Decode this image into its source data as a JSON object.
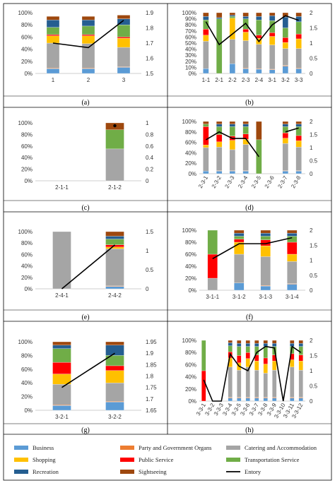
{
  "legend": [
    {
      "key": "business",
      "label": "Business",
      "color": "#5B9BD5",
      "type": "patch"
    },
    {
      "key": "party",
      "label": "Party and Government Organs",
      "color": "#ED7D31",
      "type": "patch"
    },
    {
      "key": "catering",
      "label": "Catering and Accommodation",
      "color": "#A5A5A5",
      "type": "patch"
    },
    {
      "key": "shopping",
      "label": "Shopping",
      "color": "#FFC000",
      "type": "patch"
    },
    {
      "key": "public",
      "label": "Public Service",
      "color": "#FF0000",
      "type": "patch"
    },
    {
      "key": "transport",
      "label": "Transportation Service",
      "color": "#70AD47",
      "type": "patch"
    },
    {
      "key": "recreation",
      "label": "Recreation",
      "color": "#255E91",
      "type": "patch"
    },
    {
      "key": "sightseeing",
      "label": "Sightseeing",
      "color": "#9E480E",
      "type": "patch"
    },
    {
      "key": "entropy",
      "label": "Entory",
      "color": "#000000",
      "type": "line"
    }
  ],
  "chart_data": [
    {
      "panel": "(a)",
      "type": "bar",
      "categories": [
        "1",
        "2",
        "3"
      ],
      "ylim_left": [
        0,
        100
      ],
      "yticks_left": [
        "0%",
        "20%",
        "40%",
        "60%",
        "80%",
        "100%"
      ],
      "ylim_right": [
        1.5,
        1.9
      ],
      "yticks_right": [
        "1.5",
        "1.6",
        "1.7",
        "1.8",
        "1.9"
      ],
      "stacks": [
        {
          "business": 8,
          "party": 1,
          "catering": 41,
          "shopping": 12,
          "public": 2,
          "transport": 12,
          "recreation": 12,
          "sightseeing": 6,
          "recreation_top": 6
        },
        {
          "business": 8,
          "party": 1,
          "catering": 40,
          "shopping": 13,
          "public": 2,
          "transport": 14,
          "recreation": 10,
          "sightseeing": 6,
          "recreation_top": 6
        },
        {
          "business": 10,
          "party": 1,
          "catering": 32,
          "shopping": 15,
          "public": 2,
          "transport": 20,
          "recreation": 10,
          "sightseeing": 6,
          "recreation_top": 4
        }
      ],
      "line": [
        1.7,
        1.67,
        1.85
      ]
    },
    {
      "panel": "(b)",
      "type": "bar",
      "categories": [
        "1-1",
        "2-1",
        "2-2",
        "2-3",
        "2-4",
        "3-1",
        "3-2",
        "3-3"
      ],
      "ylim_left": [
        0,
        100
      ],
      "yticks_left": [
        "0%",
        "10%",
        "20%",
        "30%",
        "40%",
        "50%",
        "60%",
        "70%",
        "80%",
        "90%",
        "100%"
      ],
      "ylim_right": [
        0,
        2
      ],
      "yticks_right": [
        "0",
        "0.5",
        "1",
        "1.5",
        "2"
      ],
      "stacks": [
        {
          "business": 8,
          "party": 0,
          "catering": 45,
          "shopping": 10,
          "public": 10,
          "transport": 15,
          "recreation": 6,
          "sightseeing": 6
        },
        {
          "business": 0,
          "party": 0,
          "catering": 0,
          "shopping": 0,
          "public": 0,
          "transport": 90,
          "recreation": 2,
          "sightseeing": 8
        },
        {
          "business": 16,
          "party": 0,
          "catering": 40,
          "shopping": 35,
          "public": 0,
          "transport": 3,
          "recreation": 2,
          "sightseeing": 4
        },
        {
          "business": 8,
          "party": 1,
          "catering": 45,
          "shopping": 14,
          "public": 5,
          "transport": 17,
          "recreation": 4,
          "sightseeing": 6
        },
        {
          "business": 7,
          "party": 1,
          "catering": 40,
          "shopping": 10,
          "public": 5,
          "transport": 25,
          "recreation": 6,
          "sightseeing": 6
        },
        {
          "business": 6,
          "party": 1,
          "catering": 40,
          "shopping": 14,
          "public": 6,
          "transport": 20,
          "recreation": 8,
          "sightseeing": 5
        },
        {
          "business": 12,
          "party": 1,
          "catering": 28,
          "shopping": 10,
          "public": 8,
          "transport": 16,
          "recreation": 18,
          "sightseeing": 7
        },
        {
          "business": 8,
          "party": 1,
          "catering": 32,
          "shopping": 16,
          "public": 8,
          "transport": 20,
          "recreation": 9,
          "sightseeing": 6
        }
      ],
      "line": [
        1.7,
        0.95,
        1.3,
        1.65,
        1.05,
        1.6,
        1.9,
        1.75
      ]
    },
    {
      "panel": "(c)",
      "type": "bar",
      "categories": [
        "2-1-1",
        "2-1-2"
      ],
      "ylim_left": [
        0,
        100
      ],
      "yticks_left": [
        "0%",
        "20%",
        "40%",
        "60%",
        "80%",
        "100%"
      ],
      "ylim_right": [
        0,
        1
      ],
      "yticks_right": [
        "0",
        "0.2",
        "0.4",
        "0.6",
        "0.8",
        "1"
      ],
      "stacks": [
        {
          "business": 0,
          "party": 0,
          "catering": 0,
          "shopping": 0,
          "public": 0,
          "transport": 0,
          "recreation": 0,
          "sightseeing": 0
        },
        {
          "business": 0,
          "party": 0,
          "catering": 55,
          "shopping": 0,
          "public": 0,
          "transport": 33,
          "recreation": 0,
          "sightseeing": 12
        }
      ],
      "line": [
        null,
        0.95
      ]
    },
    {
      "panel": "(d)",
      "type": "bar",
      "categories": [
        "2-3-1",
        "2-3-2",
        "2-3-3",
        "2-3-4",
        "2-3-5",
        "2-3-6",
        "2-3-7",
        "2-3-8"
      ],
      "ylim_left": [
        0,
        100
      ],
      "yticks_left": [
        "0%",
        "20%",
        "40%",
        "60%",
        "80%",
        "100%"
      ],
      "ylim_right": [
        0,
        2
      ],
      "yticks_right": [
        "0",
        "0.5",
        "1",
        "1.5",
        "2"
      ],
      "stacks": [
        {
          "business": 5,
          "party": 0,
          "catering": 45,
          "shopping": 5,
          "public": 35,
          "transport": 5,
          "recreation": 0,
          "sightseeing": 5
        },
        {
          "business": 5,
          "party": 1,
          "catering": 45,
          "shopping": 10,
          "public": 14,
          "transport": 15,
          "recreation": 5,
          "sightseeing": 5
        },
        {
          "business": 5,
          "party": 1,
          "catering": 40,
          "shopping": 18,
          "public": 8,
          "transport": 18,
          "recreation": 5,
          "sightseeing": 5
        },
        {
          "business": 5,
          "party": 1,
          "catering": 50,
          "shopping": 10,
          "public": 10,
          "transport": 14,
          "recreation": 5,
          "sightseeing": 5
        },
        {
          "business": 0,
          "party": 0,
          "catering": 0,
          "shopping": 0,
          "public": 0,
          "transport": 65,
          "recreation": 0,
          "sightseeing": 35
        },
        {
          "business": 0,
          "party": 0,
          "catering": 0,
          "shopping": 0,
          "public": 0,
          "transport": 0,
          "recreation": 0,
          "sightseeing": 0
        },
        {
          "business": 5,
          "party": 1,
          "catering": 52,
          "shopping": 10,
          "public": 10,
          "transport": 12,
          "recreation": 5,
          "sightseeing": 5
        },
        {
          "business": 5,
          "party": 1,
          "catering": 45,
          "shopping": 12,
          "public": 10,
          "transport": 17,
          "recreation": 5,
          "sightseeing": 5
        }
      ],
      "line": [
        1.3,
        1.6,
        1.35,
        1.35,
        0.65,
        null,
        1.6,
        1.75
      ]
    },
    {
      "panel": "(e)",
      "type": "bar",
      "categories": [
        "2-4-1",
        "2-4-2"
      ],
      "ylim_left": [
        0,
        100
      ],
      "yticks_left": [
        "0%",
        "20%",
        "40%",
        "60%",
        "80%",
        "100%"
      ],
      "ylim_right": [
        0,
        1.5
      ],
      "yticks_right": [
        "0",
        "0.5",
        "1",
        "1.5"
      ],
      "stacks": [
        {
          "business": 0,
          "party": 0,
          "catering": 100,
          "shopping": 0,
          "public": 0,
          "transport": 0,
          "recreation": 0,
          "sightseeing": 0
        },
        {
          "business": 4,
          "party": 1,
          "catering": 65,
          "shopping": 3,
          "public": 4,
          "transport": 10,
          "recreation": 5,
          "sightseeing": 8
        }
      ],
      "line": [
        0.0,
        1.15
      ]
    },
    {
      "panel": "(f)",
      "type": "bar",
      "categories": [
        "3-1-1",
        "3-1-2",
        "3-1-3",
        "3-1-4"
      ],
      "ylim_left": [
        0,
        100
      ],
      "yticks_left": [
        "0%",
        "20%",
        "40%",
        "60%",
        "80%",
        "100%"
      ],
      "ylim_right": [
        0,
        2
      ],
      "yticks_right": [
        "0",
        "0.5",
        "1",
        "1.5",
        "2"
      ],
      "stacks": [
        {
          "business": 0,
          "party": 0,
          "catering": 20,
          "shopping": 0,
          "public": 40,
          "transport": 40,
          "recreation": 0,
          "sightseeing": 0
        },
        {
          "business": 12,
          "party": 0,
          "catering": 48,
          "shopping": 20,
          "public": 5,
          "transport": 5,
          "recreation": 5,
          "sightseeing": 5
        },
        {
          "business": 7,
          "party": 1,
          "catering": 48,
          "shopping": 18,
          "public": 10,
          "transport": 6,
          "recreation": 5,
          "sightseeing": 5
        },
        {
          "business": 10,
          "party": 1,
          "catering": 37,
          "shopping": 12,
          "public": 20,
          "transport": 10,
          "recreation": 5,
          "sightseeing": 5
        }
      ],
      "line": [
        1.05,
        1.55,
        1.55,
        1.75
      ]
    },
    {
      "panel": "(g)",
      "type": "bar",
      "categories": [
        "3-2-1",
        "3-2-2"
      ],
      "ylim_left": [
        0,
        100
      ],
      "yticks_left": [
        "0%",
        "20%",
        "40%",
        "60%",
        "80%",
        "100%"
      ],
      "ylim_right": [
        1.65,
        1.95
      ],
      "yticks_right": [
        "1.65",
        "1.7",
        "1.75",
        "1.8",
        "1.85",
        "1.9",
        "1.95"
      ],
      "stacks": [
        {
          "business": 7,
          "party": 1,
          "catering": 30,
          "shopping": 15,
          "public": 17,
          "transport": 20,
          "recreation": 5,
          "sightseeing": 5
        },
        {
          "business": 12,
          "party": 1,
          "catering": 27,
          "shopping": 18,
          "public": 7,
          "transport": 15,
          "recreation": 15,
          "sightseeing": 5
        }
      ],
      "line": [
        1.75,
        1.9
      ]
    },
    {
      "panel": "(h)",
      "type": "bar",
      "categories": [
        "3-3-1",
        "3-3-2",
        "3-3-3",
        "3-3-4",
        "3-3-5",
        "3-3-6",
        "3-3-7",
        "3-3-8",
        "3-3-9",
        "3-3-10",
        "3-3-11",
        "3-3-12"
      ],
      "ylim_left": [
        0,
        100
      ],
      "yticks_left": [
        "0%",
        "20%",
        "40%",
        "60%",
        "80%",
        "100%"
      ],
      "ylim_right": [
        0,
        2
      ],
      "yticks_right": [
        "0",
        "0.5",
        "1",
        "1.5",
        "2"
      ],
      "stacks": [
        {
          "business": 0,
          "party": 0,
          "catering": 0,
          "shopping": 0,
          "public": 50,
          "transport": 50,
          "recreation": 0,
          "sightseeing": 0
        },
        {
          "business": 0,
          "party": 0,
          "catering": 0,
          "shopping": 0,
          "public": 0,
          "transport": 0,
          "recreation": 0,
          "sightseeing": 0
        },
        {
          "business": 0,
          "party": 0,
          "catering": 0,
          "shopping": 0,
          "public": 0,
          "transport": 0,
          "recreation": 0,
          "sightseeing": 0
        },
        {
          "business": 5,
          "party": 1,
          "catering": 50,
          "shopping": 15,
          "public": 10,
          "transport": 10,
          "recreation": 5,
          "sightseeing": 4
        },
        {
          "business": 5,
          "party": 1,
          "catering": 45,
          "shopping": 12,
          "public": 12,
          "transport": 15,
          "recreation": 5,
          "sightseeing": 5
        },
        {
          "business": 5,
          "party": 1,
          "catering": 50,
          "shopping": 14,
          "public": 10,
          "transport": 10,
          "recreation": 5,
          "sightseeing": 5
        },
        {
          "business": 5,
          "party": 1,
          "catering": 45,
          "shopping": 15,
          "public": 10,
          "transport": 14,
          "recreation": 5,
          "sightseeing": 5
        },
        {
          "business": 5,
          "party": 1,
          "catering": 40,
          "shopping": 15,
          "public": 10,
          "transport": 19,
          "recreation": 5,
          "sightseeing": 5
        },
        {
          "business": 5,
          "party": 1,
          "catering": 45,
          "shopping": 15,
          "public": 10,
          "transport": 14,
          "recreation": 5,
          "sightseeing": 5
        },
        {
          "business": 0,
          "party": 0,
          "catering": 0,
          "shopping": 0,
          "public": 0,
          "transport": 0,
          "recreation": 0,
          "sightseeing": 0
        },
        {
          "business": 5,
          "party": 1,
          "catering": 50,
          "shopping": 12,
          "public": 10,
          "transport": 12,
          "recreation": 5,
          "sightseeing": 5
        },
        {
          "business": 5,
          "party": 1,
          "catering": 45,
          "shopping": 15,
          "public": 10,
          "transport": 14,
          "recreation": 5,
          "sightseeing": 5
        }
      ],
      "line": [
        0.7,
        0.0,
        0.0,
        1.55,
        1.15,
        1.0,
        1.6,
        1.8,
        1.75,
        0.0,
        1.8,
        1.6
      ]
    }
  ]
}
